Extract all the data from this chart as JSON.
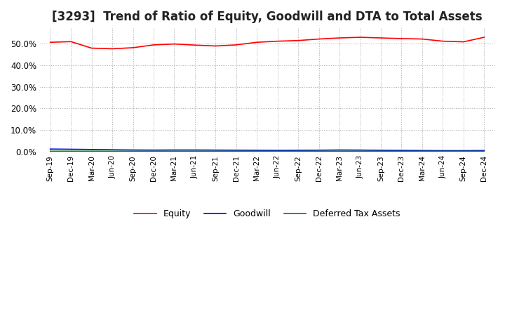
{
  "title": "[3293]  Trend of Ratio of Equity, Goodwill and DTA to Total Assets",
  "title_fontsize": 12,
  "background_color": "#ffffff",
  "grid_color": "#aaaaaa",
  "xlabels": [
    "Sep-19",
    "Dec-19",
    "Mar-20",
    "Jun-20",
    "Sep-20",
    "Dec-20",
    "Mar-21",
    "Jun-21",
    "Sep-21",
    "Dec-21",
    "Mar-22",
    "Jun-22",
    "Sep-22",
    "Dec-22",
    "Mar-23",
    "Jun-23",
    "Sep-23",
    "Dec-23",
    "Mar-24",
    "Jun-24",
    "Sep-24",
    "Dec-24"
  ],
  "equity": [
    50.5,
    50.8,
    47.8,
    47.5,
    48.0,
    49.3,
    49.7,
    49.2,
    48.8,
    49.3,
    50.5,
    51.0,
    51.3,
    52.0,
    52.5,
    52.8,
    52.5,
    52.2,
    52.0,
    51.0,
    50.7,
    52.8
  ],
  "goodwill": [
    1.3,
    1.2,
    1.1,
    0.95,
    0.85,
    0.8,
    0.85,
    0.85,
    0.8,
    0.75,
    0.7,
    0.65,
    0.7,
    0.75,
    0.85,
    0.8,
    0.7,
    0.65,
    0.6,
    0.55,
    0.55,
    0.6
  ],
  "dta": [
    0.3,
    0.3,
    0.3,
    0.28,
    0.28,
    0.28,
    0.28,
    0.28,
    0.28,
    0.28,
    0.28,
    0.28,
    0.28,
    0.28,
    0.28,
    0.28,
    0.28,
    0.28,
    0.28,
    0.28,
    0.28,
    0.28
  ],
  "equity_color": "#ff0000",
  "goodwill_color": "#0000ff",
  "dta_color": "#008000",
  "ylim": [
    0,
    57
  ],
  "yticks": [
    0,
    10,
    20,
    30,
    40,
    50
  ],
  "legend_labels": [
    "Equity",
    "Goodwill",
    "Deferred Tax Assets"
  ],
  "line_width": 1.2
}
